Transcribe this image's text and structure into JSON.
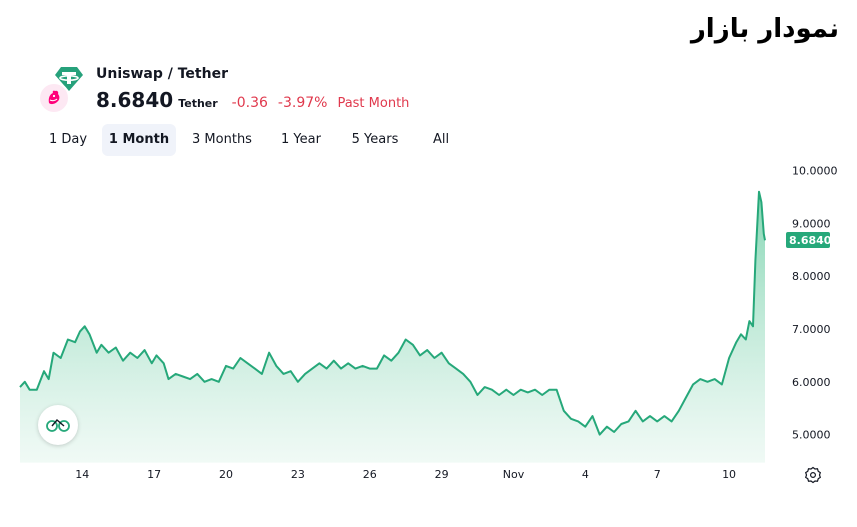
{
  "page": {
    "title": "نمودار بازار"
  },
  "header": {
    "pair": "Uniswap / Tether",
    "price": "8.6840",
    "quote": "Tether",
    "change": "-0.36",
    "change_pct": "-3.97%",
    "period": "Past Month",
    "icons": [
      "tether-icon",
      "uniswap-icon"
    ]
  },
  "tabs": [
    {
      "label": "1 Day",
      "active": false
    },
    {
      "label": "1 Month",
      "active": true
    },
    {
      "label": "3 Months",
      "active": false
    },
    {
      "label": "1 Year",
      "active": false
    },
    {
      "label": "5 Years",
      "active": false
    },
    {
      "label": "All",
      "active": false
    }
  ],
  "colors": {
    "line": "#26a87a",
    "area_top": "#7fd4b0",
    "negative": "#e0394d",
    "tether": "#26a17b",
    "uniswap": "#ff007a"
  },
  "chart_data": {
    "type": "area",
    "x_ticks": [
      {
        "day": 3.5,
        "label": "14"
      },
      {
        "day": 6.5,
        "label": "17"
      },
      {
        "day": 9.5,
        "label": "20"
      },
      {
        "day": 12.5,
        "label": "23"
      },
      {
        "day": 15.5,
        "label": "26"
      },
      {
        "day": 18.5,
        "label": "29"
      },
      {
        "day": 21.5,
        "label": "Nov"
      },
      {
        "day": 24.5,
        "label": "4"
      },
      {
        "day": 27.5,
        "label": "7"
      },
      {
        "day": 30.5,
        "label": "10"
      }
    ],
    "y_ticks": [
      "5.0000",
      "6.0000",
      "7.0000",
      "8.0000",
      "9.0000",
      "10.0000"
    ],
    "ylim": [
      4.5,
      10.2
    ],
    "xlim": [
      0.9,
      32.0
    ],
    "last_value": "8.6840",
    "series": [
      {
        "points": [
          [
            0.9,
            5.9
          ],
          [
            1.1,
            6.0
          ],
          [
            1.3,
            5.85
          ],
          [
            1.6,
            5.85
          ],
          [
            1.9,
            6.2
          ],
          [
            2.1,
            6.05
          ],
          [
            2.3,
            6.55
          ],
          [
            2.6,
            6.45
          ],
          [
            2.9,
            6.8
          ],
          [
            3.2,
            6.75
          ],
          [
            3.4,
            6.95
          ],
          [
            3.6,
            7.05
          ],
          [
            3.8,
            6.9
          ],
          [
            4.1,
            6.55
          ],
          [
            4.3,
            6.7
          ],
          [
            4.6,
            6.55
          ],
          [
            4.9,
            6.65
          ],
          [
            5.2,
            6.4
          ],
          [
            5.5,
            6.55
          ],
          [
            5.8,
            6.45
          ],
          [
            6.1,
            6.6
          ],
          [
            6.4,
            6.35
          ],
          [
            6.6,
            6.5
          ],
          [
            6.9,
            6.35
          ],
          [
            7.1,
            6.05
          ],
          [
            7.4,
            6.15
          ],
          [
            7.7,
            6.1
          ],
          [
            8.0,
            6.05
          ],
          [
            8.3,
            6.15
          ],
          [
            8.6,
            6.0
          ],
          [
            8.9,
            6.05
          ],
          [
            9.2,
            6.0
          ],
          [
            9.5,
            6.3
          ],
          [
            9.8,
            6.25
          ],
          [
            10.1,
            6.45
          ],
          [
            10.4,
            6.35
          ],
          [
            10.7,
            6.25
          ],
          [
            11.0,
            6.15
          ],
          [
            11.3,
            6.55
          ],
          [
            11.6,
            6.3
          ],
          [
            11.9,
            6.15
          ],
          [
            12.2,
            6.2
          ],
          [
            12.5,
            6.0
          ],
          [
            12.8,
            6.15
          ],
          [
            13.1,
            6.25
          ],
          [
            13.4,
            6.35
          ],
          [
            13.7,
            6.25
          ],
          [
            14.0,
            6.4
          ],
          [
            14.3,
            6.25
          ],
          [
            14.6,
            6.35
          ],
          [
            14.9,
            6.25
          ],
          [
            15.2,
            6.3
          ],
          [
            15.5,
            6.25
          ],
          [
            15.8,
            6.25
          ],
          [
            16.1,
            6.5
          ],
          [
            16.4,
            6.4
          ],
          [
            16.7,
            6.55
          ],
          [
            17.0,
            6.8
          ],
          [
            17.3,
            6.7
          ],
          [
            17.6,
            6.5
          ],
          [
            17.9,
            6.6
          ],
          [
            18.2,
            6.45
          ],
          [
            18.5,
            6.55
          ],
          [
            18.8,
            6.35
          ],
          [
            19.1,
            6.25
          ],
          [
            19.4,
            6.15
          ],
          [
            19.7,
            6.0
          ],
          [
            20.0,
            5.75
          ],
          [
            20.3,
            5.9
          ],
          [
            20.6,
            5.85
          ],
          [
            20.9,
            5.75
          ],
          [
            21.2,
            5.85
          ],
          [
            21.5,
            5.75
          ],
          [
            21.8,
            5.85
          ],
          [
            22.1,
            5.8
          ],
          [
            22.4,
            5.85
          ],
          [
            22.7,
            5.75
          ],
          [
            23.0,
            5.85
          ],
          [
            23.3,
            5.85
          ],
          [
            23.6,
            5.45
          ],
          [
            23.9,
            5.3
          ],
          [
            24.2,
            5.25
          ],
          [
            24.5,
            5.15
          ],
          [
            24.8,
            5.35
          ],
          [
            25.1,
            5.0
          ],
          [
            25.4,
            5.15
          ],
          [
            25.7,
            5.05
          ],
          [
            26.0,
            5.2
          ],
          [
            26.3,
            5.25
          ],
          [
            26.6,
            5.45
          ],
          [
            26.9,
            5.25
          ],
          [
            27.2,
            5.35
          ],
          [
            27.5,
            5.25
          ],
          [
            27.8,
            5.35
          ],
          [
            28.1,
            5.25
          ],
          [
            28.4,
            5.45
          ],
          [
            28.7,
            5.7
          ],
          [
            29.0,
            5.95
          ],
          [
            29.3,
            6.05
          ],
          [
            29.6,
            6.0
          ],
          [
            29.9,
            6.05
          ],
          [
            30.2,
            5.95
          ],
          [
            30.5,
            6.45
          ],
          [
            30.8,
            6.75
          ],
          [
            31.0,
            6.9
          ],
          [
            31.2,
            6.8
          ],
          [
            31.35,
            7.15
          ],
          [
            31.5,
            7.05
          ],
          [
            31.6,
            8.3
          ],
          [
            31.75,
            9.6
          ],
          [
            31.85,
            9.4
          ],
          [
            31.95,
            8.8
          ],
          [
            32.0,
            8.68
          ]
        ]
      }
    ]
  }
}
